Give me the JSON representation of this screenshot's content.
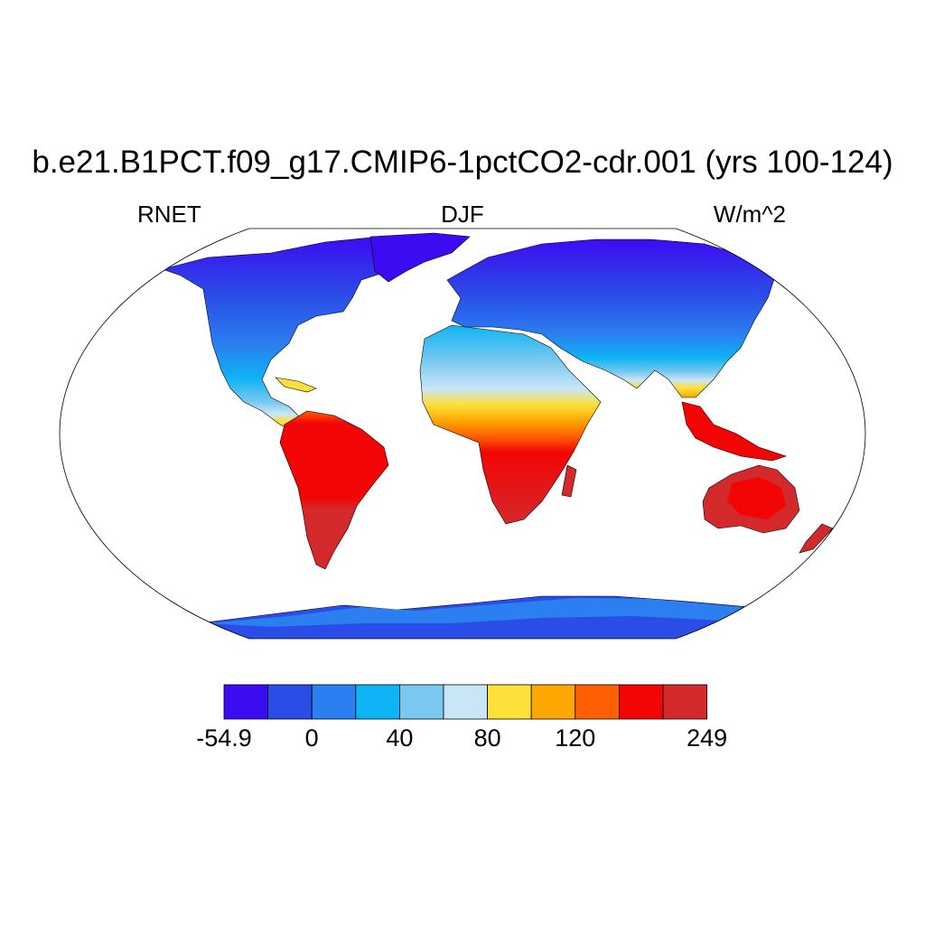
{
  "title": "b.e21.B1PCT.f09_g17.CMIP6-1pctCO2-cdr.001 (yrs 100-124)",
  "left_label": "RNET",
  "center_label": "DJF",
  "right_label": "W/m^2",
  "colorbar": {
    "colors": [
      "#3d0bf2",
      "#2a4de7",
      "#2b7ff0",
      "#0eb4f5",
      "#79c8ef",
      "#c9e6f7",
      "#fee03a",
      "#fea703",
      "#fe5f03",
      "#f30405",
      "#d3292a"
    ],
    "tick_labels": [
      {
        "text": "-54.9",
        "index": 0
      },
      {
        "text": "0",
        "index": 2
      },
      {
        "text": "40",
        "index": 4
      },
      {
        "text": "80",
        "index": 6
      },
      {
        "text": "120",
        "index": 8
      },
      {
        "text": "249",
        "index": 11
      }
    ]
  }
}
